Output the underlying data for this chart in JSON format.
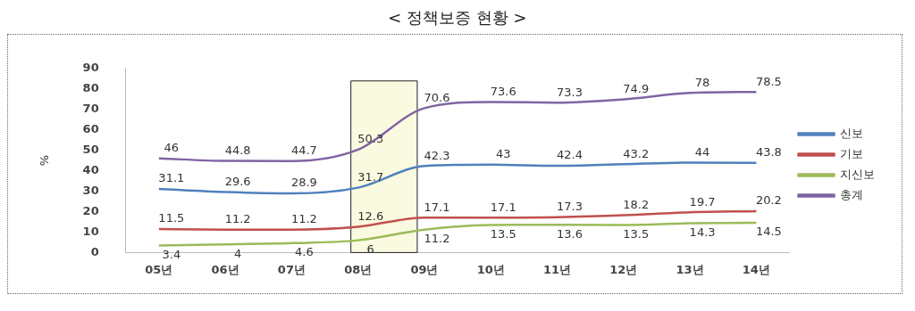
{
  "chart_data": {
    "type": "line",
    "title": "< 정책보증 현황 >",
    "ylabel": "%",
    "categories": [
      "05년",
      "06년",
      "07년",
      "08년",
      "09년",
      "10년",
      "11년",
      "12년",
      "13년",
      "14년"
    ],
    "series": [
      {
        "name": "신보",
        "color": "#4f81bd",
        "values": [
          31.1,
          29.6,
          28.9,
          31.7,
          42.3,
          43,
          42.4,
          43.2,
          44,
          43.8
        ]
      },
      {
        "name": "기보",
        "color": "#c0504d",
        "values": [
          11.5,
          11.2,
          11.2,
          12.6,
          17.1,
          17.1,
          17.3,
          18.2,
          19.7,
          20.2
        ]
      },
      {
        "name": "지신보",
        "color": "#9bbb59",
        "values": [
          3.4,
          4,
          4.6,
          6,
          11.2,
          13.5,
          13.6,
          13.5,
          14.3,
          14.5
        ]
      },
      {
        "name": "총계",
        "color": "#8064a2",
        "values": [
          46,
          44.8,
          44.7,
          50.3,
          70.6,
          73.6,
          73.3,
          74.9,
          78,
          78.5
        ]
      }
    ],
    "ylim": [
      0,
      90
    ],
    "yticks": [
      0,
      10,
      20,
      30,
      40,
      50,
      60,
      70,
      80,
      90
    ],
    "bands": [
      {
        "axis": "x",
        "from": "08년",
        "to": "09년",
        "color": "#fafae0"
      }
    ],
    "data_labels": true,
    "grid": false,
    "legend": "right",
    "marker": "none",
    "line_style": "solid"
  }
}
